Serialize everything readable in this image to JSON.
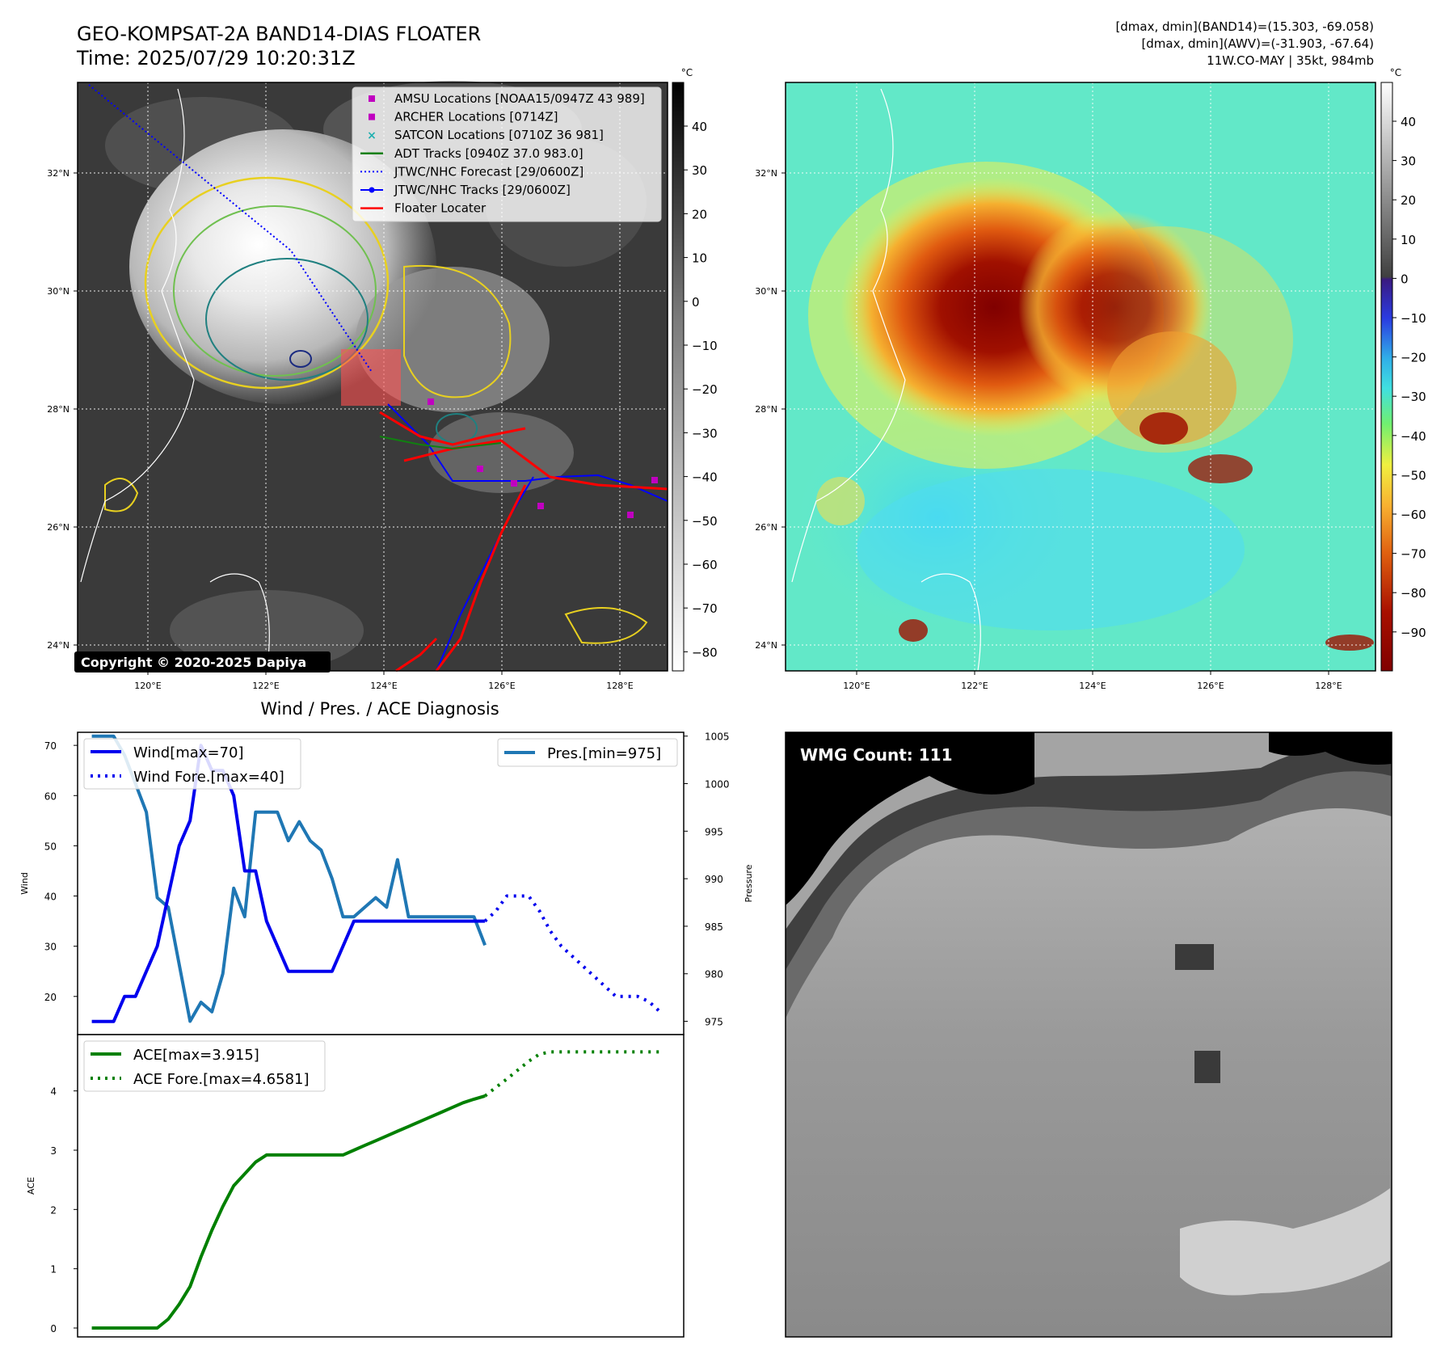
{
  "header": {
    "title_line1": "GEO-KOMPSAT-2A BAND14-DIAS FLOATER",
    "title_line2": "Time: 2025/07/29 10:20:31Z",
    "right_line1": "[dmax, dmin](BAND14)=(15.303, -69.058)",
    "right_line2": "[dmax, dmin](AWV)=(-31.903, -67.64)",
    "right_line3": "11W.CO-MAY | 35kt, 984mb"
  },
  "ir_map": {
    "unit": "°C",
    "lat_ticks": [
      "32°N",
      "30°N",
      "28°N",
      "26°N",
      "24°N"
    ],
    "lon_ticks": [
      "120°E",
      "122°E",
      "124°E",
      "126°E",
      "128°E"
    ],
    "colorbar_ticks": [
      "40",
      "30",
      "20",
      "10",
      "0",
      "−10",
      "−20",
      "−30",
      "−40",
      "−50",
      "−60",
      "−70",
      "−80"
    ],
    "copyright": "Copyright © 2020-2025 Dapiya",
    "legend": [
      {
        "label": "AMSU Locations [NOAA15/0947Z 43 989]",
        "symbol": "square",
        "color": "#c000c0"
      },
      {
        "label": "ARCHER Locations [0714Z]",
        "symbol": "square",
        "color": "#c000c0"
      },
      {
        "label": "SATCON Locations [0710Z 36 981]",
        "symbol": "cross",
        "color": "#20b0b0"
      },
      {
        "label": "ADT Tracks [0940Z 37.0 983.0]",
        "symbol": "line",
        "color": "#108010"
      },
      {
        "label": "JTWC/NHC Forecast [29/0600Z]",
        "symbol": "dotted",
        "color": "#0000ff"
      },
      {
        "label": "JTWC/NHC Tracks [29/0600Z]",
        "symbol": "line-dot",
        "color": "#0000ff"
      },
      {
        "label": "Floater Locater",
        "symbol": "line",
        "color": "#ff0000"
      }
    ]
  },
  "wv_map": {
    "unit": "°C",
    "lat_ticks": [
      "32°N",
      "30°N",
      "28°N",
      "26°N",
      "24°N"
    ],
    "lon_ticks": [
      "120°E",
      "122°E",
      "124°E",
      "126°E",
      "128°E"
    ],
    "colorbar_ticks": [
      "40",
      "30",
      "20",
      "10",
      "0",
      "−10",
      "−20",
      "−30",
      "−40",
      "−50",
      "−60",
      "−70",
      "−80",
      "−90"
    ]
  },
  "wmg_panel": {
    "label": "WMG Count: 111"
  },
  "chart_data": [
    {
      "type": "line",
      "title": "Wind / Pres. / ACE Diagnosis",
      "ylabel": "Wind",
      "ylabel_right": "Pressure",
      "ylim": [
        12.4,
        72.6
      ],
      "ylim_right": [
        973.6,
        1005.4
      ],
      "y_ticks": [
        20,
        30,
        40,
        50,
        60,
        70
      ],
      "y_ticks_right": [
        975,
        980,
        985,
        990,
        995,
        1000,
        1005
      ],
      "colors": {
        "wind": "#0000ee",
        "pressure": "#1f77b4"
      },
      "series": [
        {
          "name": "Wind[max=70]",
          "style": "solid",
          "x": [
            0,
            1,
            2,
            3,
            4,
            5,
            6,
            7,
            8,
            9,
            10,
            11,
            12,
            13,
            14,
            15,
            16,
            17,
            18,
            19,
            20,
            21,
            22,
            23,
            24,
            25,
            26,
            27,
            28,
            29,
            30,
            31,
            32,
            33,
            34,
            35,
            36
          ],
          "values": [
            15,
            15,
            15,
            20,
            20,
            25,
            30,
            40,
            50,
            55,
            70,
            65,
            65,
            60,
            45,
            45,
            35,
            30,
            25,
            25,
            25,
            25,
            25,
            30,
            35,
            35,
            35,
            35,
            35,
            35,
            35,
            35,
            35,
            35,
            35,
            35,
            35
          ]
        },
        {
          "name": "Wind Fore.[max=40]",
          "style": "dotted",
          "x": [
            36,
            37,
            38,
            39,
            40,
            41,
            42,
            43,
            44,
            45,
            46,
            47,
            48,
            49,
            50,
            51,
            52
          ],
          "values": [
            35,
            37,
            40,
            40,
            40,
            37,
            33,
            30,
            28,
            26,
            24,
            22,
            20,
            20,
            20,
            19,
            17
          ]
        },
        {
          "name": "Pres.[min=975]",
          "style": "solid",
          "axis": "right",
          "x": [
            0,
            1,
            2,
            3,
            4,
            5,
            6,
            7,
            8,
            9,
            10,
            11,
            12,
            13,
            14,
            15,
            16,
            17,
            18,
            19,
            20,
            21,
            22,
            23,
            24,
            25,
            26,
            27,
            28,
            29,
            30,
            31,
            32,
            33,
            34,
            35,
            36
          ],
          "values": [
            1005,
            1005,
            1005,
            1003,
            1000,
            997,
            988,
            987,
            981,
            975,
            977,
            976,
            980,
            989,
            986,
            997,
            997,
            997,
            994,
            996,
            994,
            993,
            990,
            986,
            986,
            987,
            988,
            987,
            992,
            986,
            986,
            986,
            986,
            986,
            986,
            986,
            983
          ]
        }
      ]
    },
    {
      "type": "line",
      "ylabel": "ACE",
      "ylim": [
        -0.15,
        4.95
      ],
      "y_ticks": [
        0,
        1,
        2,
        3,
        4
      ],
      "colors": {
        "ace": "#008000"
      },
      "series": [
        {
          "name": "ACE[max=3.915]",
          "style": "solid",
          "x": [
            0,
            1,
            2,
            3,
            4,
            5,
            6,
            7,
            8,
            9,
            10,
            11,
            12,
            13,
            14,
            15,
            16,
            17,
            18,
            19,
            20,
            21,
            22,
            23,
            24,
            25,
            26,
            27,
            28,
            29,
            30,
            31,
            32,
            33,
            34,
            35,
            36
          ],
          "values": [
            0,
            0,
            0,
            0,
            0,
            0,
            0,
            0.15,
            0.4,
            0.7,
            1.2,
            1.65,
            2.05,
            2.4,
            2.6,
            2.8,
            2.92,
            2.92,
            2.92,
            2.92,
            2.92,
            2.92,
            2.92,
            2.92,
            3.0,
            3.08,
            3.16,
            3.24,
            3.32,
            3.4,
            3.48,
            3.56,
            3.64,
            3.72,
            3.8,
            3.86,
            3.915
          ]
        },
        {
          "name": "ACE Fore.[max=4.6581]",
          "style": "dotted",
          "x": [
            36,
            37,
            38,
            39,
            40,
            41,
            42,
            43,
            44,
            45,
            46,
            47,
            48,
            49,
            50,
            51,
            52
          ],
          "values": [
            3.915,
            4.06,
            4.2,
            4.35,
            4.5,
            4.62,
            4.6581,
            4.6581,
            4.6581,
            4.6581,
            4.6581,
            4.6581,
            4.6581,
            4.6581,
            4.6581,
            4.6581,
            4.6581
          ]
        }
      ]
    }
  ]
}
